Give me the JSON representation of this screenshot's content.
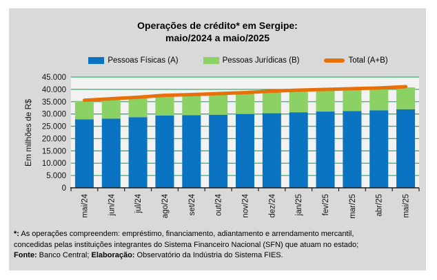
{
  "title": {
    "line1": "Operações de crédito* em Sergipe:",
    "line2": "maio/2024 a maio/2025"
  },
  "legend": {
    "items": [
      {
        "label": "Pessoas Físicas (A)",
        "swatch": "square",
        "color": "#0b74c2"
      },
      {
        "label": "Pessoas Jurídicas (B)",
        "swatch": "square",
        "color": "#8cd163"
      },
      {
        "label": "Total (A+B)",
        "swatch": "line",
        "color": "#e8700a"
      }
    ]
  },
  "chart_data": {
    "type": "bar",
    "subtype": "stacked-bars-with-total-line",
    "title": "Operações de crédito* em Sergipe: maio/2024 a maio/2025",
    "categories": [
      "mai/24",
      "jun/24",
      "jul/24",
      "ago/24",
      "set/24",
      "out/24",
      "nov/24",
      "dez/24",
      "jan/25",
      "fev/25",
      "mar/25",
      "abr/25",
      "mai/25"
    ],
    "series": [
      {
        "name": "Pessoas Físicas (A)",
        "type": "bar",
        "stacked": true,
        "color": "#0b74c2",
        "values": [
          27800,
          28100,
          28700,
          29400,
          29500,
          29700,
          30000,
          30300,
          30700,
          31000,
          31200,
          31500,
          31900
        ]
      },
      {
        "name": "Pessoas Jurídicas (B)",
        "type": "bar",
        "stacked": true,
        "color": "#8cd163",
        "values": [
          7500,
          7800,
          7800,
          7900,
          8100,
          8300,
          8400,
          8700,
          8700,
          8700,
          8800,
          8800,
          8900
        ]
      },
      {
        "name": "Total (A+B)",
        "type": "line",
        "color": "#e8700a",
        "values": [
          35300,
          35900,
          36500,
          37300,
          37600,
          38000,
          38400,
          39000,
          39400,
          39700,
          40000,
          40300,
          40800
        ]
      }
    ],
    "xlabel": "",
    "ylabel": "Em milhões de R$",
    "ylim": [
      0,
      45000
    ],
    "ytick_step": 5000,
    "ytick_labels": [
      "0",
      "5.000",
      "10.000",
      "15.000",
      "20.000",
      "25.000",
      "30.000",
      "35.000",
      "40.000",
      "45.000"
    ],
    "grid": true,
    "gridline_color": "#29b765",
    "plot_bg": "#f2f2f2",
    "axis_color": "#1a1a1a",
    "legend_position": "top",
    "values_unit": "milhões de R$"
  },
  "footnote": {
    "asterisk_label": "*:",
    "note": "As operações compreendem: empréstimo, financiamento, adiantamento e arrendamento mercantil, concedidas pelas instituições integrantes do Sistema Financeiro Nacional (SFN) que atuam no estado;",
    "fonte_label": "Fonte:",
    "fonte_text": "Banco Central;",
    "elaboracao_label": "Elaboração:",
    "elaboracao_text": "Observatório da Indústria do Sistema FIES."
  }
}
